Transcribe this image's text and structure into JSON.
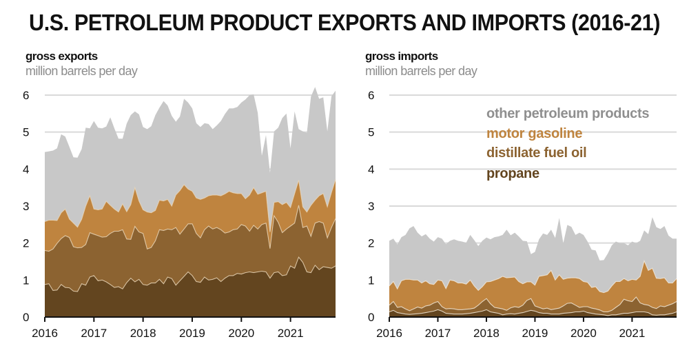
{
  "title": "U.S. PETROLEUM PRODUCT EXPORTS AND IMPORTS (2016-21)",
  "colors": {
    "other": "#c8c8c8",
    "gasoline": "#bf843f",
    "distillate": "#8c6331",
    "propane": "#63451f",
    "gridline": "#d9d9d9",
    "axis": "#111111",
    "legend_other": "#8f8f8f",
    "legend_gasoline": "#bf843f",
    "legend_distillate": "#8c6331",
    "legend_propane": "#63451f"
  },
  "chart_data": [
    {
      "type": "area",
      "stacked": true,
      "panel": "exports",
      "title": "gross exports",
      "ylabel": "million barrels per day",
      "xlabel": "",
      "x_start": "2016-01",
      "x_end": "2021-12",
      "frequency": "monthly",
      "x_tick_labels": [
        "2016",
        "2017",
        "2018",
        "2019",
        "2020",
        "2021"
      ],
      "y_tick_labels": [
        "0",
        "1",
        "2",
        "3",
        "4",
        "5",
        "6"
      ],
      "ylim": [
        0,
        6
      ],
      "grid": true,
      "series": [
        {
          "name": "propane",
          "values": [
            0.88,
            0.9,
            0.72,
            0.73,
            0.88,
            0.8,
            0.79,
            0.7,
            0.69,
            0.9,
            0.86,
            1.08,
            1.12,
            0.98,
            1.0,
            0.95,
            0.88,
            0.8,
            0.82,
            0.76,
            0.93,
            1.05,
            0.95,
            1.02,
            0.88,
            0.86,
            0.92,
            0.92,
            1.02,
            0.9,
            1.08,
            1.04,
            0.86,
            0.98,
            1.1,
            1.22,
            1.12,
            0.96,
            0.94,
            1.08,
            1.0,
            1.02,
            1.06,
            0.96,
            1.05,
            1.12,
            1.12,
            1.18,
            1.16,
            1.2,
            1.22,
            1.2,
            1.22,
            1.24,
            1.22,
            1.05,
            1.2,
            1.22,
            1.12,
            1.14,
            1.38,
            1.32,
            1.62,
            1.48,
            1.22,
            1.2,
            1.4,
            1.28,
            1.36,
            1.34,
            1.32,
            1.38
          ]
        },
        {
          "name": "distillate fuel oil",
          "values": [
            0.92,
            0.88,
            1.12,
            1.26,
            1.24,
            1.4,
            1.36,
            1.2,
            1.18,
            0.98,
            1.1,
            1.2,
            1.12,
            1.22,
            1.16,
            1.22,
            1.38,
            1.52,
            1.5,
            1.6,
            1.18,
            1.05,
            1.5,
            1.28,
            1.38,
            0.98,
            0.96,
            1.14,
            1.34,
            1.44,
            1.3,
            1.32,
            1.56,
            1.26,
            1.28,
            1.3,
            1.4,
            1.3,
            1.2,
            1.28,
            1.46,
            1.36,
            1.36,
            1.4,
            1.22,
            1.18,
            1.24,
            1.2,
            1.34,
            1.26,
            1.1,
            1.28,
            1.16,
            1.26,
            1.32,
            0.8,
            1.54,
            1.34,
            1.16,
            1.24,
            1.08,
            1.22,
            1.4,
            0.94,
            1.24,
            0.98,
            1.14,
            1.3,
            1.18,
            0.8,
            1.1,
            1.28
          ]
        },
        {
          "name": "motor gasoline",
          "values": [
            0.78,
            0.84,
            0.78,
            0.62,
            0.7,
            0.72,
            0.5,
            0.64,
            0.56,
            0.76,
            1.04,
            1.0,
            0.68,
            0.7,
            0.76,
            0.96,
            0.76,
            0.6,
            0.52,
            0.7,
            0.74,
            0.94,
            1.05,
            0.84,
            0.64,
            1.0,
            0.94,
            0.82,
            0.8,
            0.8,
            0.8,
            0.64,
            0.88,
            1.18,
            1.2,
            0.94,
            0.88,
            0.96,
            1.04,
            0.86,
            0.82,
            0.92,
            0.88,
            0.92,
            1.06,
            1.1,
            1.0,
            0.96,
            0.84,
            0.74,
            0.98,
            1.02,
            0.94,
            0.86,
            0.86,
            0.45,
            0.36,
            0.56,
            0.76,
            0.72,
            0.5,
            0.8,
            0.68,
            0.56,
            0.38,
            0.84,
            0.62,
            0.7,
            0.8,
            0.84,
            0.95,
            1.06
          ]
        },
        {
          "name": "other petroleum products",
          "values": [
            1.88,
            1.86,
            1.88,
            1.95,
            2.12,
            1.96,
            1.95,
            1.78,
            1.88,
            1.9,
            2.12,
            1.82,
            2.38,
            2.22,
            2.18,
            2.02,
            2.38,
            2.18,
            1.98,
            1.76,
            2.38,
            2.42,
            2.06,
            2.34,
            2.24,
            2.24,
            2.34,
            2.58,
            2.5,
            2.7,
            2.54,
            2.44,
            1.98,
            2.0,
            2.32,
            2.34,
            2.24,
            2.02,
            1.96,
            2.02,
            1.94,
            1.78,
            1.88,
            2.02,
            2.16,
            2.24,
            2.28,
            2.34,
            2.46,
            2.68,
            2.7,
            2.52,
            2.2,
            1.0,
            1.52,
            1.6,
            1.92,
            2.0,
            2.34,
            2.4,
            1.6,
            2.22,
            1.38,
            2.04,
            2.14,
            2.94,
            3.06,
            2.62,
            2.6,
            2.04,
            2.6,
            2.4
          ]
        }
      ]
    },
    {
      "type": "area",
      "stacked": true,
      "panel": "imports",
      "title": "gross imports",
      "ylabel": "million barrels per day",
      "xlabel": "",
      "x_start": "2016-01",
      "x_end": "2021-12",
      "frequency": "monthly",
      "x_tick_labels": [
        "2016",
        "2017",
        "2018",
        "2019",
        "2020",
        "2021"
      ],
      "y_tick_labels": [
        "0",
        "1",
        "2",
        "3",
        "4",
        "5",
        "6"
      ],
      "ylim": [
        0,
        6
      ],
      "grid": true,
      "legend": [
        "other petroleum products",
        "motor gasoline",
        "distillate fuel oil",
        "propane"
      ],
      "legend_position": "top-right",
      "series": [
        {
          "name": "propane",
          "values": [
            0.14,
            0.18,
            0.12,
            0.1,
            0.08,
            0.07,
            0.08,
            0.09,
            0.1,
            0.12,
            0.14,
            0.16,
            0.2,
            0.16,
            0.1,
            0.09,
            0.08,
            0.08,
            0.08,
            0.09,
            0.1,
            0.12,
            0.14,
            0.16,
            0.2,
            0.14,
            0.12,
            0.1,
            0.06,
            0.08,
            0.09,
            0.08,
            0.1,
            0.12,
            0.15,
            0.18,
            0.16,
            0.12,
            0.1,
            0.1,
            0.08,
            0.08,
            0.08,
            0.1,
            0.11,
            0.12,
            0.14,
            0.14,
            0.16,
            0.12,
            0.1,
            0.08,
            0.07,
            0.06,
            0.04,
            0.06,
            0.06,
            0.08,
            0.1,
            0.1,
            0.12,
            0.14,
            0.14,
            0.14,
            0.12,
            0.06,
            0.05,
            0.06,
            0.06,
            0.08,
            0.1,
            0.14
          ]
        },
        {
          "name": "distillate fuel oil",
          "values": [
            0.18,
            0.24,
            0.14,
            0.18,
            0.14,
            0.1,
            0.14,
            0.18,
            0.14,
            0.18,
            0.18,
            0.22,
            0.22,
            0.12,
            0.12,
            0.14,
            0.14,
            0.12,
            0.12,
            0.12,
            0.12,
            0.12,
            0.18,
            0.26,
            0.3,
            0.22,
            0.14,
            0.14,
            0.16,
            0.1,
            0.16,
            0.2,
            0.16,
            0.2,
            0.3,
            0.32,
            0.14,
            0.14,
            0.12,
            0.14,
            0.12,
            0.14,
            0.16,
            0.2,
            0.26,
            0.26,
            0.18,
            0.12,
            0.12,
            0.16,
            0.14,
            0.14,
            0.12,
            0.08,
            0.1,
            0.12,
            0.2,
            0.26,
            0.38,
            0.34,
            0.3,
            0.4,
            0.24,
            0.2,
            0.2,
            0.2,
            0.18,
            0.24,
            0.22,
            0.24,
            0.26,
            0.28
          ]
        },
        {
          "name": "motor gasoline",
          "values": [
            0.52,
            0.54,
            0.5,
            0.7,
            0.8,
            0.85,
            0.78,
            0.73,
            0.68,
            0.68,
            0.58,
            0.5,
            0.58,
            0.7,
            0.55,
            0.77,
            0.76,
            0.72,
            0.72,
            0.68,
            0.78,
            0.6,
            0.4,
            0.4,
            0.45,
            0.6,
            0.74,
            0.8,
            0.88,
            0.88,
            0.82,
            0.8,
            0.7,
            0.58,
            0.5,
            0.45,
            0.56,
            0.84,
            0.9,
            0.9,
            1.06,
            0.78,
            0.9,
            0.72,
            0.68,
            0.68,
            0.74,
            0.78,
            0.68,
            0.66,
            0.56,
            0.6,
            0.5,
            0.52,
            0.56,
            0.66,
            0.7,
            0.62,
            0.56,
            0.54,
            0.6,
            0.46,
            0.72,
            1.18,
            0.94,
            1.06,
            0.82,
            0.74,
            0.78,
            0.6,
            0.56,
            0.62
          ]
        },
        {
          "name": "other petroleum products",
          "values": [
            1.22,
            1.16,
            1.2,
            1.18,
            1.2,
            1.38,
            1.46,
            1.28,
            1.26,
            1.26,
            1.22,
            1.16,
            1.16,
            1.14,
            1.2,
            1.06,
            1.12,
            1.14,
            1.12,
            1.12,
            1.22,
            1.24,
            1.2,
            1.24,
            1.2,
            1.14,
            1.16,
            1.14,
            1.12,
            1.3,
            1.14,
            1.2,
            1.22,
            1.16,
            1.1,
            0.75,
            0.9,
            1.0,
            1.14,
            1.08,
            1.1,
            1.14,
            1.54,
            0.98,
            1.44,
            1.38,
            1.16,
            1.24,
            1.26,
            1.1,
            1.02,
            0.98,
            0.84,
            0.88,
            1.02,
            1.1,
            1.08,
            1.04,
            0.96,
            0.96,
            1.02,
            1.0,
            0.96,
            0.82,
            0.98,
            1.38,
            1.38,
            1.34,
            1.4,
            1.28,
            1.2,
            1.08
          ]
        }
      ]
    }
  ],
  "exports_panel": {
    "title": "gross exports",
    "unit": "million barrels per day"
  },
  "imports_panel": {
    "title": "gross imports",
    "unit": "million barrels per day"
  },
  "legend": {
    "other": "other petroleum products",
    "gasoline": "motor gasoline",
    "distillate": "distillate fuel oil",
    "propane": "propane"
  }
}
